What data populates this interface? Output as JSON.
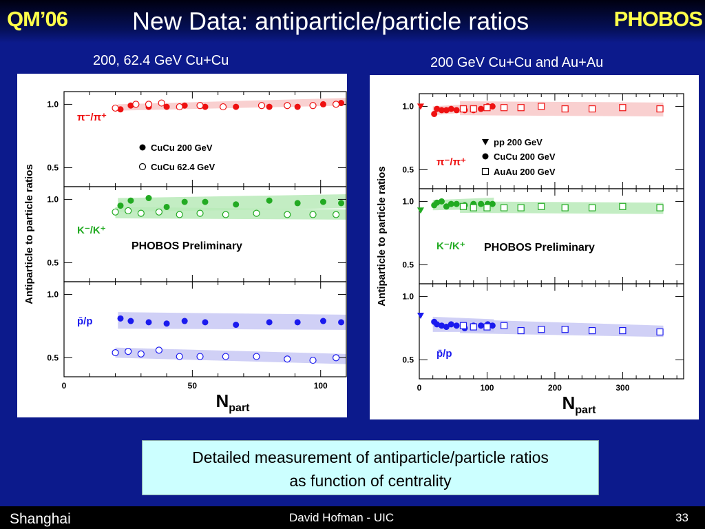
{
  "header": {
    "conference": "QM’06",
    "title": "New Data: antiparticle/particle ratios",
    "brand": "PHOBOS"
  },
  "subtitles": {
    "left": "200, 62.4 GeV Cu+Cu",
    "right": "200 GeV Cu+Cu and Au+Au"
  },
  "callout": {
    "line1": "Detailed measurement of antiparticle/particle ratios",
    "line2": "as function of centrality"
  },
  "footer": {
    "location": "Shanghai",
    "author": "David Hofman - UIC",
    "page": "33"
  },
  "colors": {
    "pion": "#ee1111",
    "kaon": "#22aa22",
    "proton": "#1a1aee",
    "pionBand": "#f8c8c8",
    "kaonBand": "#b8eab8",
    "protonBand": "#c8c8f4"
  },
  "chart_data": [
    {
      "type": "scatter",
      "ylabel": "Antiparticle to particle ratios",
      "xlabel": "N",
      "xlabel_sub": "part",
      "xlim": [
        0,
        110
      ],
      "xticks": [
        0,
        50,
        100
      ],
      "preliminary": "PHOBOS Preliminary",
      "panels": [
        {
          "label": "π⁻/π⁺",
          "color_key": "pion",
          "ylim": [
            0.35,
            1.1
          ],
          "yticks": [
            "0.5",
            "1.0"
          ],
          "legend": [
            {
              "marker": "filled",
              "text": "CuCu 200 GeV"
            },
            {
              "marker": "open",
              "text": "CuCu 62.4 GeV"
            }
          ],
          "series": [
            {
              "name": "CuCu 200 GeV",
              "marker": "filled",
              "x": [
                22,
                26,
                33,
                40,
                47,
                55,
                67,
                80,
                91,
                101,
                108
              ],
              "y": [
                0.96,
                0.99,
                0.98,
                0.98,
                0.99,
                0.98,
                0.98,
                0.98,
                0.98,
                1.0,
                1.01
              ],
              "band": [
                [
                  21,
                  0.95,
                  1.0
                ],
                [
                  110,
                  0.99,
                  1.05
                ]
              ]
            },
            {
              "name": "CuCu 62.4 GeV",
              "marker": "open",
              "x": [
                20,
                28,
                33,
                38,
                45,
                53,
                62,
                77,
                87,
                97,
                106
              ],
              "y": [
                0.97,
                1.0,
                1.0,
                1.01,
                0.98,
                0.99,
                0.98,
                0.99,
                0.99,
                0.99,
                1.0
              ]
            }
          ]
        },
        {
          "label": "K⁻/K⁺",
          "color_key": "kaon",
          "ylim": [
            0.35,
            1.1
          ],
          "yticks": [
            "0.5",
            "1.0"
          ],
          "series": [
            {
              "name": "CuCu 200 GeV",
              "marker": "filled",
              "x": [
                22,
                26,
                33,
                40,
                47,
                55,
                67,
                80,
                91,
                101,
                108
              ],
              "y": [
                0.95,
                0.99,
                1.01,
                0.94,
                0.98,
                0.98,
                0.96,
                0.99,
                0.97,
                0.98,
                0.97
              ],
              "band": [
                [
                  21,
                  0.9,
                  1.01
                ],
                [
                  110,
                  0.93,
                  1.04
                ]
              ]
            },
            {
              "name": "CuCu 62.4 GeV",
              "marker": "open",
              "x": [
                20,
                25,
                30,
                37,
                45,
                53,
                63,
                75,
                87,
                97,
                106
              ],
              "y": [
                0.9,
                0.91,
                0.89,
                0.9,
                0.88,
                0.89,
                0.88,
                0.89,
                0.88,
                0.88,
                0.88
              ],
              "band": [
                [
                  20,
                  0.85,
                  0.94
                ],
                [
                  110,
                  0.84,
                  0.92
                ]
              ]
            }
          ]
        },
        {
          "label": "p̄/p",
          "color_key": "proton",
          "ylim": [
            0.35,
            1.1
          ],
          "yticks": [
            "0.5",
            "1.0"
          ],
          "series": [
            {
              "name": "CuCu 200 GeV",
              "marker": "filled",
              "x": [
                22,
                26,
                33,
                40,
                47,
                55,
                67,
                80,
                91,
                101,
                108
              ],
              "y": [
                0.81,
                0.79,
                0.78,
                0.77,
                0.79,
                0.78,
                0.76,
                0.78,
                0.78,
                0.79,
                0.78
              ],
              "band": [
                [
                  21,
                  0.73,
                  0.86
                ],
                [
                  110,
                  0.72,
                  0.84
                ]
              ]
            },
            {
              "name": "CuCu 62.4 GeV",
              "marker": "open",
              "x": [
                20,
                25,
                30,
                37,
                45,
                53,
                63,
                75,
                87,
                97,
                106
              ],
              "y": [
                0.54,
                0.55,
                0.53,
                0.56,
                0.51,
                0.51,
                0.51,
                0.51,
                0.49,
                0.48,
                0.5
              ],
              "band": [
                [
                  20,
                  0.5,
                  0.58
                ],
                [
                  110,
                  0.45,
                  0.53
                ]
              ]
            }
          ]
        }
      ]
    },
    {
      "type": "scatter",
      "ylabel": "Antiparticle to particle ratios",
      "xlabel": "N",
      "xlabel_sub": "part",
      "xlim": [
        0,
        390
      ],
      "xticks": [
        0,
        100,
        200,
        300
      ],
      "preliminary": "PHOBOS Preliminary",
      "panels": [
        {
          "label": "π⁻/π⁺",
          "color_key": "pion",
          "ylim": [
            0.35,
            1.1
          ],
          "yticks": [
            "0.5",
            "1.0"
          ],
          "legend": [
            {
              "marker": "triangle",
              "text": "pp 200 GeV"
            },
            {
              "marker": "filled",
              "text": "CuCu 200 GeV"
            },
            {
              "marker": "square",
              "text": "AuAu 200 GeV"
            }
          ],
          "series": [
            {
              "name": "pp 200 GeV",
              "marker": "triangle",
              "x": [
                2
              ],
              "y": [
                1.0
              ]
            },
            {
              "name": "CuCu 200 GeV",
              "marker": "filled",
              "x": [
                22,
                26,
                33,
                40,
                47,
                55,
                67,
                80,
                91,
                101,
                108
              ],
              "y": [
                0.94,
                0.98,
                0.97,
                0.97,
                0.98,
                0.97,
                0.97,
                0.97,
                0.98,
                1.0,
                1.0
              ],
              "band": [
                [
                  20,
                  0.93,
                  1.0
                ],
                [
                  110,
                  0.97,
                  1.03
                ]
              ]
            },
            {
              "name": "AuAu 200 GeV",
              "marker": "square",
              "x": [
                65,
                80,
                100,
                125,
                150,
                180,
                215,
                255,
                300,
                355
              ],
              "y": [
                0.98,
                0.98,
                0.99,
                0.99,
                0.99,
                1.0,
                0.98,
                0.98,
                0.99,
                0.98
              ],
              "band": [
                [
                  60,
                  0.93,
                  1.04
                ],
                [
                  360,
                  0.92,
                  1.03
                ]
              ]
            }
          ]
        },
        {
          "label": "K⁻/K⁺",
          "color_key": "kaon",
          "ylim": [
            0.35,
            1.1
          ],
          "yticks": [
            "0.5",
            "1.0"
          ],
          "series": [
            {
              "name": "pp 200 GeV",
              "marker": "triangle",
              "x": [
                2
              ],
              "y": [
                0.93
              ]
            },
            {
              "name": "CuCu 200 GeV",
              "marker": "filled",
              "x": [
                22,
                26,
                33,
                40,
                47,
                55,
                67,
                80,
                91,
                101,
                108
              ],
              "y": [
                0.97,
                0.99,
                1.0,
                0.96,
                0.98,
                0.98,
                0.97,
                0.98,
                0.98,
                0.98,
                0.98
              ],
              "band": [
                [
                  20,
                  0.93,
                  1.01
                ],
                [
                  110,
                  0.94,
                  1.03
                ]
              ]
            },
            {
              "name": "AuAu 200 GeV",
              "marker": "square",
              "x": [
                65,
                80,
                100,
                125,
                150,
                180,
                215,
                255,
                300,
                355
              ],
              "y": [
                0.96,
                0.95,
                0.95,
                0.95,
                0.95,
                0.96,
                0.95,
                0.95,
                0.96,
                0.95
              ],
              "band": [
                [
                  60,
                  0.91,
                  1.0
                ],
                [
                  360,
                  0.9,
                  0.99
                ]
              ]
            }
          ]
        },
        {
          "label": "p̄/p",
          "color_key": "proton",
          "ylim": [
            0.35,
            1.1
          ],
          "yticks": [
            "0.5",
            "1.0"
          ],
          "series": [
            {
              "name": "pp 200 GeV",
              "marker": "triangle",
              "x": [
                2
              ],
              "y": [
                0.85
              ]
            },
            {
              "name": "CuCu 200 GeV",
              "marker": "filled",
              "x": [
                22,
                26,
                33,
                40,
                47,
                55,
                67,
                80,
                91,
                101,
                108
              ],
              "y": [
                0.8,
                0.78,
                0.77,
                0.76,
                0.78,
                0.77,
                0.75,
                0.77,
                0.77,
                0.78,
                0.77
              ],
              "band": [
                [
                  20,
                  0.72,
                  0.84
                ],
                [
                  110,
                  0.72,
                  0.82
                ]
              ]
            },
            {
              "name": "AuAu 200 GeV",
              "marker": "square",
              "x": [
                65,
                80,
                100,
                125,
                150,
                180,
                215,
                255,
                300,
                355
              ],
              "y": [
                0.77,
                0.76,
                0.76,
                0.77,
                0.73,
                0.74,
                0.74,
                0.73,
                0.73,
                0.72
              ],
              "band": [
                [
                  60,
                  0.71,
                  0.82
                ],
                [
                  360,
                  0.68,
                  0.77
                ]
              ]
            }
          ]
        }
      ]
    }
  ]
}
